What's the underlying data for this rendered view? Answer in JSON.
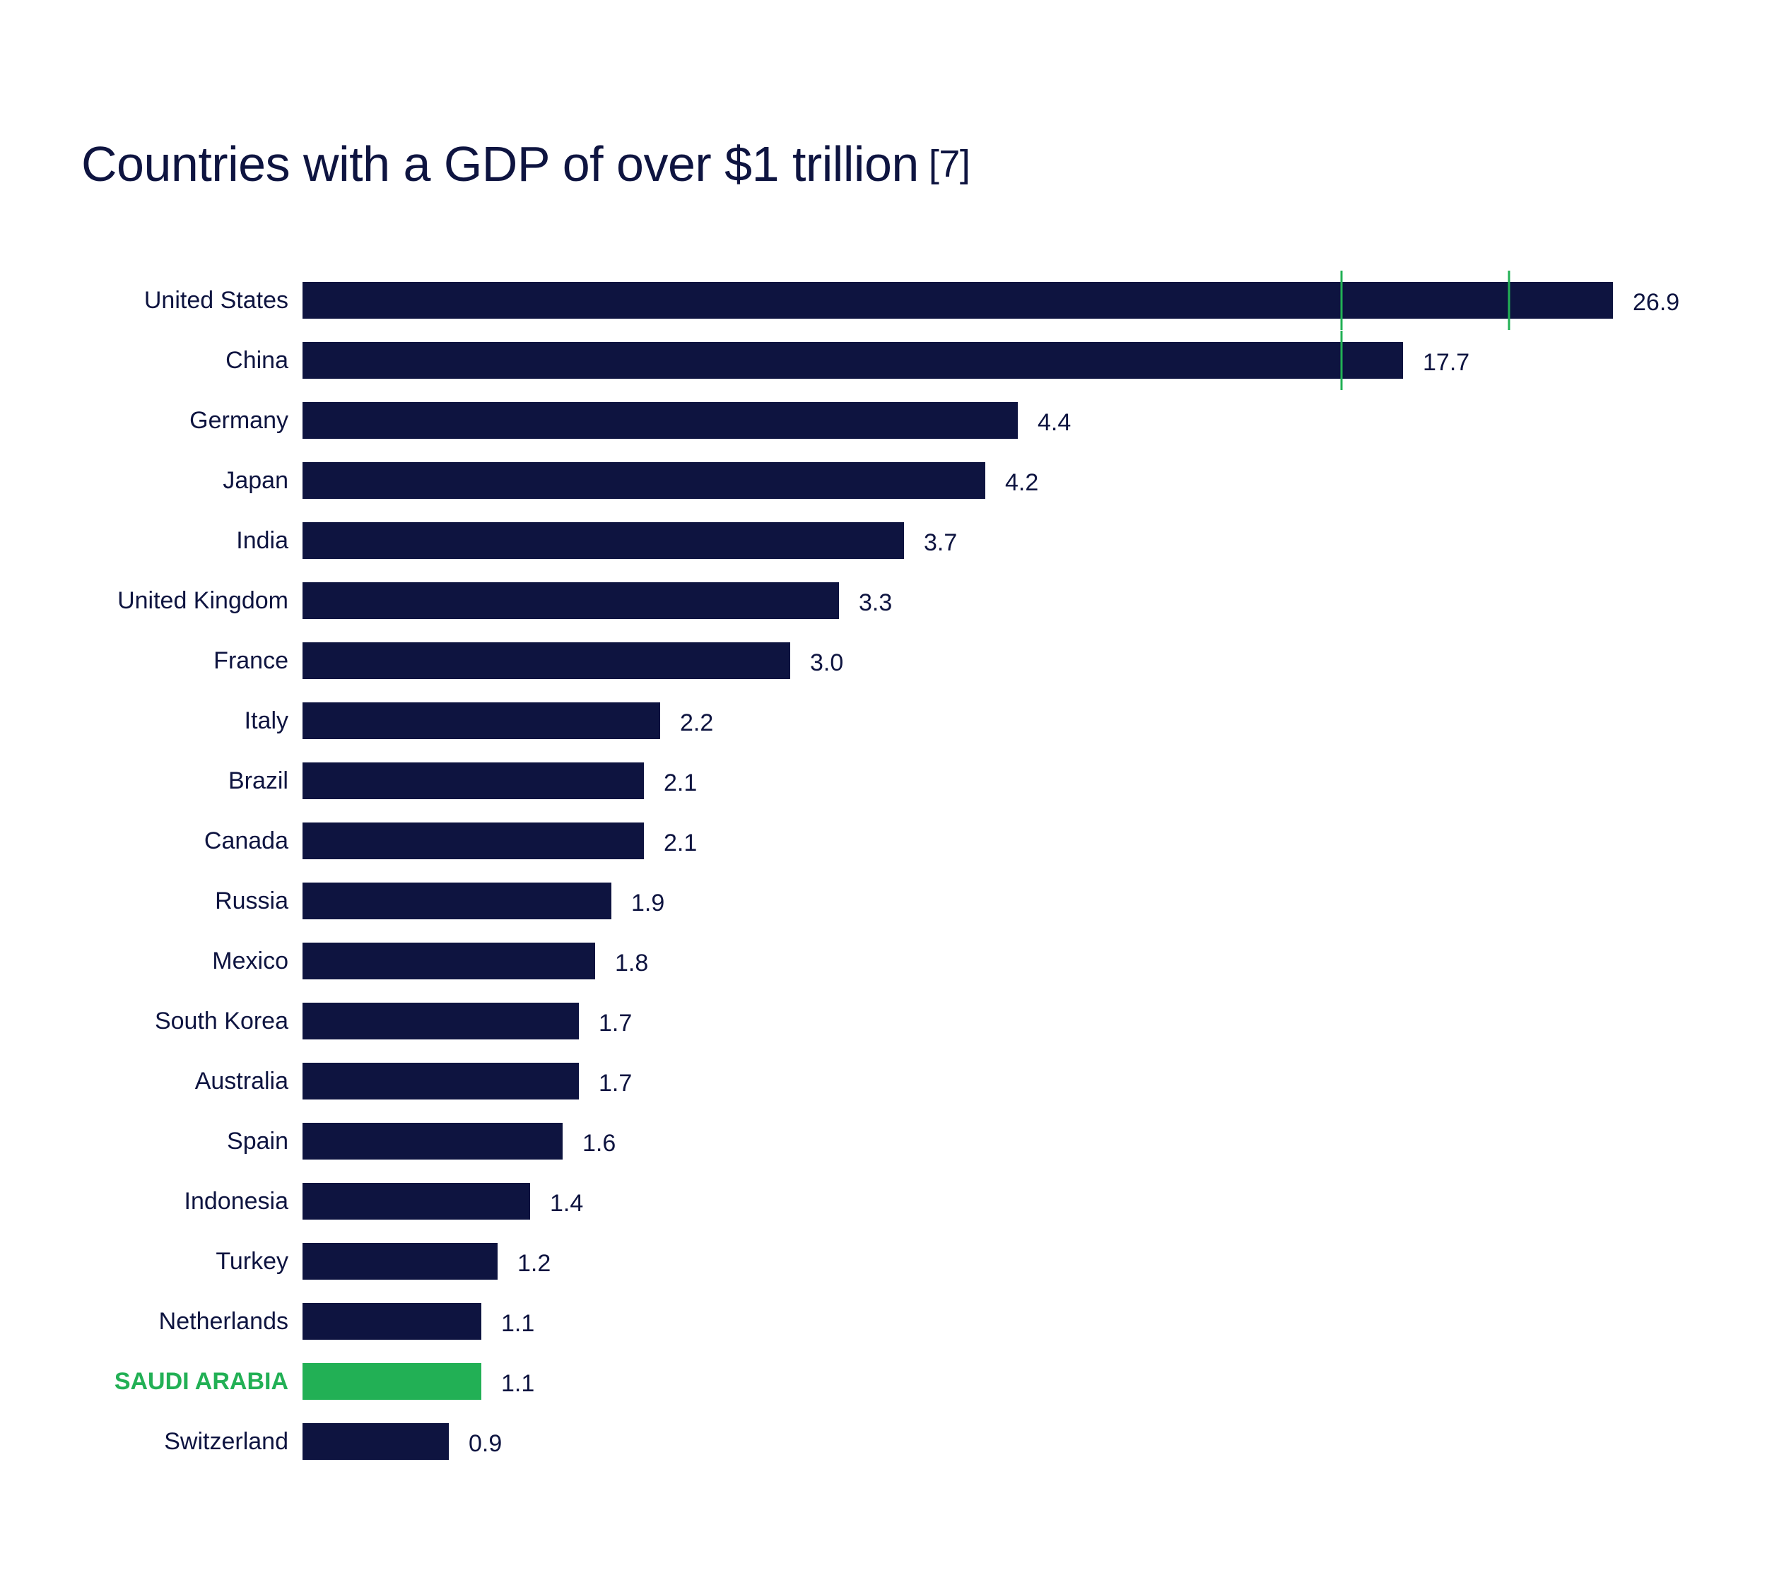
{
  "title": {
    "main": "Countries  with a GDP of over $1 trillion",
    "ref": "[7]"
  },
  "colors": {
    "bar": "#0e1440",
    "highlight": "#22b055",
    "break_mark": "#22b055",
    "text": "#0e1440"
  },
  "chart_data": {
    "type": "bar",
    "orientation": "horizontal",
    "title": "Countries with a GDP of over $1 trillion",
    "xlabel": "",
    "ylabel": "",
    "unit": "trillion USD",
    "axis_break": true,
    "categories": [
      "United States",
      "China",
      "Germany",
      "Japan",
      "India",
      "United Kingdom",
      "France",
      "Italy",
      "Brazil",
      "Canada",
      "Russia",
      "Mexico",
      "South Korea",
      "Australia",
      "Spain",
      "Indonesia",
      "Turkey",
      "Netherlands",
      "SAUDI ARABIA",
      "Switzerland"
    ],
    "values": [
      26.9,
      17.7,
      4.4,
      4.2,
      3.7,
      3.3,
      3.0,
      2.2,
      2.1,
      2.1,
      1.9,
      1.8,
      1.7,
      1.7,
      1.6,
      1.4,
      1.2,
      1.1,
      1.1,
      0.9
    ],
    "value_labels": [
      "26.9",
      "17.7",
      "4.4",
      "4.2",
      "3.7",
      "3.3",
      "3.0",
      "2.2",
      "2.1",
      "2.1",
      "1.9",
      "1.8",
      "1.7",
      "1.7",
      "1.6",
      "1.4",
      "1.2",
      "1.1",
      "1.1",
      "0.9"
    ],
    "highlight": "SAUDI ARABIA"
  }
}
